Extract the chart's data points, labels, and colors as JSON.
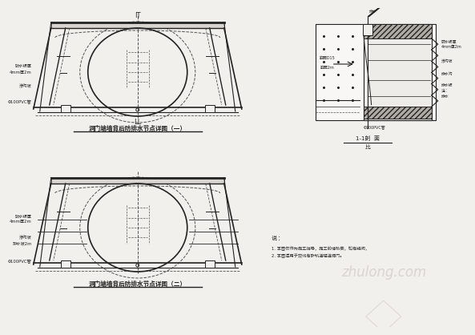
{
  "bg_color": "#f2f0ec",
  "line_color": "#222222",
  "dashed_color": "#555555",
  "gray_color": "#888888",
  "title1": "洞门端墙背后防排水节点详图（一）",
  "title2": "洞门端墙背后防排水节点详图（二）",
  "section_label": "1-1剖  面",
  "scale_label": "比",
  "label_it": "IT",
  "label_ll": "LL",
  "note_title": "说：",
  "note1": "1. 本图仅作为施工指导，施工前请核实，如有疑问，",
  "note2": "2. 本图适用于双线有砟轨道隧道洞门。",
  "watermark": "zhulong.com",
  "watermark_color": "#c8c4be",
  "label_pvc1": "Φ100PVC管",
  "label_left1a": "防水板厚",
  "label_left1b": "4mm厚2m",
  "label_left2": "渗沟坡",
  "label_left3": "排水坡",
  "label_right1": "防水板厚",
  "label_right1b": "4mm厚2m",
  "label_right2": "渗沟坡",
  "label_right3": "排水沟",
  "label_right4": "排水板",
  "label_right5": "注：",
  "label_right6": "排水",
  "label_section_top": "排水",
  "label_pvc_section": "Φ100PVC管"
}
